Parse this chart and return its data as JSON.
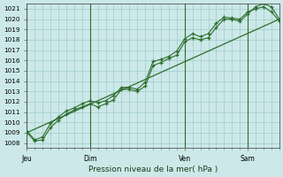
{
  "xlabel": "Pression niveau de la mer( hPa )",
  "ylim": [
    1007.5,
    1021.5
  ],
  "yticks": [
    1008,
    1009,
    1010,
    1011,
    1012,
    1013,
    1014,
    1015,
    1016,
    1017,
    1018,
    1019,
    1020,
    1021
  ],
  "day_labels": [
    "Jeu",
    "Dim",
    "Ven",
    "Sam"
  ],
  "day_positions": [
    0,
    48,
    120,
    168
  ],
  "xlim": [
    0,
    192
  ],
  "bg_color": "#cce8e8",
  "grid_color": "#a8d0d0",
  "line_color": "#2d6e2d",
  "series1_x": [
    0,
    6,
    12,
    18,
    24,
    30,
    36,
    42,
    48,
    54,
    60,
    66,
    72,
    78,
    84,
    90,
    96,
    102,
    108,
    114,
    120,
    126,
    132,
    138,
    144,
    150,
    156,
    162,
    168,
    174,
    180,
    186,
    192
  ],
  "series1_y": [
    1009.0,
    1008.2,
    1008.3,
    1009.5,
    1010.2,
    1010.8,
    1011.2,
    1011.5,
    1011.8,
    1011.5,
    1011.8,
    1012.2,
    1013.2,
    1013.2,
    1013.0,
    1013.5,
    1015.5,
    1015.8,
    1016.2,
    1016.5,
    1017.8,
    1018.2,
    1018.0,
    1018.2,
    1019.2,
    1020.0,
    1020.0,
    1019.8,
    1020.5,
    1021.2,
    1021.5,
    1021.2,
    1020.0
  ],
  "series2_x": [
    0,
    192
  ],
  "series2_y": [
    1009.0,
    1020.0
  ],
  "series3_x": [
    0,
    6,
    12,
    18,
    24,
    30,
    36,
    42,
    48,
    54,
    60,
    66,
    72,
    78,
    84,
    90,
    96,
    102,
    108,
    114,
    120,
    126,
    132,
    138,
    144,
    150,
    156,
    162,
    168,
    174,
    180,
    186,
    192
  ],
  "series3_y": [
    1009.2,
    1008.3,
    1008.6,
    1009.9,
    1010.5,
    1011.1,
    1011.4,
    1011.8,
    1012.1,
    1011.9,
    1012.1,
    1012.6,
    1013.4,
    1013.4,
    1013.2,
    1013.9,
    1015.9,
    1016.1,
    1016.4,
    1016.9,
    1018.1,
    1018.6,
    1018.3,
    1018.6,
    1019.6,
    1020.2,
    1020.1,
    1020.0,
    1020.7,
    1021.0,
    1021.2,
    1020.7,
    1019.8
  ]
}
